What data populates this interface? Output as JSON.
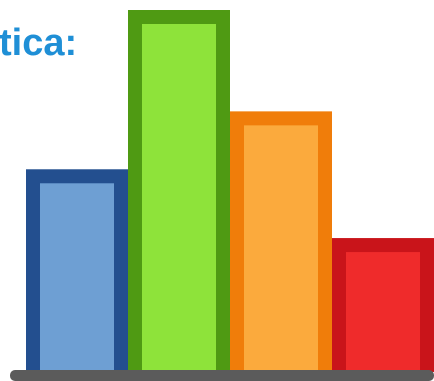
{
  "title_fragment": "tica:",
  "chart_data": {
    "type": "bar",
    "title": "",
    "categories": [
      "",
      "",
      "",
      ""
    ],
    "values": [
      56,
      100,
      72,
      37
    ],
    "ylim": [
      0,
      100
    ],
    "grid": false,
    "legend": "none",
    "bar_fill_colors": [
      "#6e9fd3",
      "#8ee33a",
      "#fbaa3d",
      "#ef2b2b"
    ],
    "bar_border_colors": [
      "#234f8f",
      "#4f9a13",
      "#f07d0a",
      "#c9141a"
    ],
    "baseline_color": "#5b5b5b"
  }
}
